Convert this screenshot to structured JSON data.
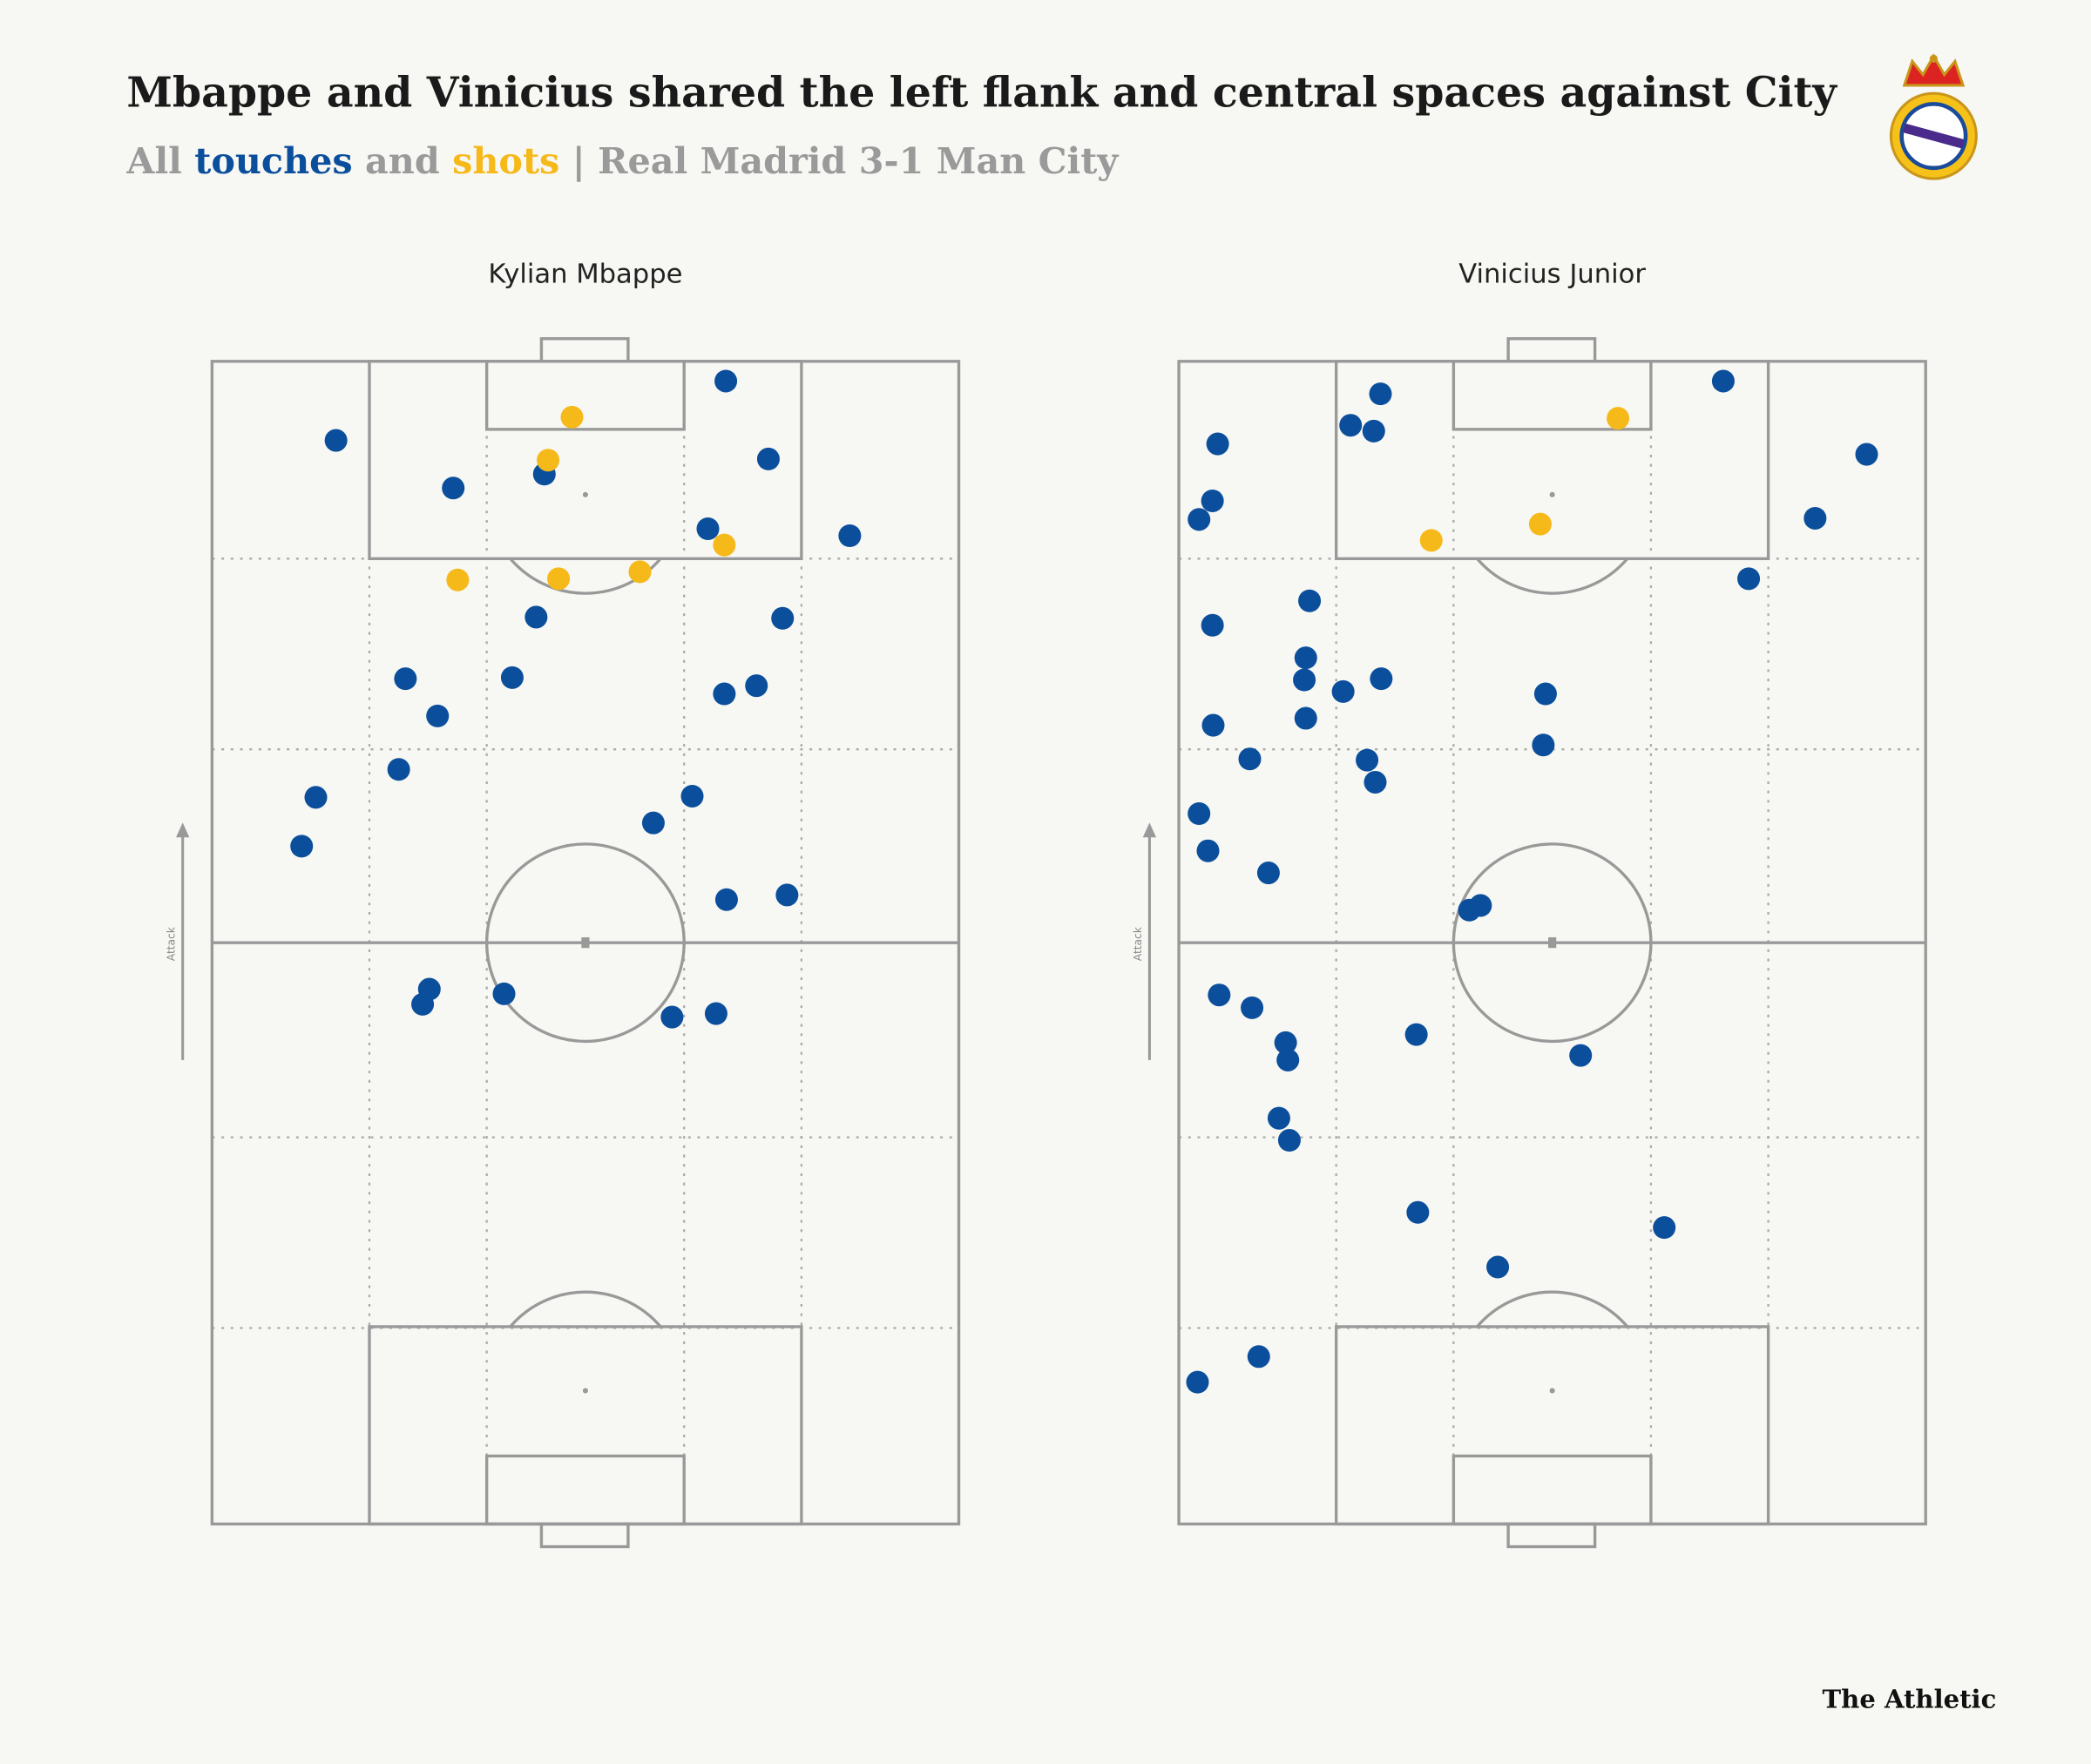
{
  "header": {
    "title": "Mbappe and Vinicius shared the left flank and central spaces against City",
    "subtitle_parts": [
      "All ",
      "touches",
      " and ",
      "shots",
      " | Real Madrid 3-1 Man City"
    ]
  },
  "logo": {
    "name": "Real Madrid crest"
  },
  "attack_label": "Attack",
  "brand": "The Athletic",
  "colors": {
    "touch": "#0b4f9c",
    "shot": "#f6b91a",
    "pitch_line": "#999999",
    "background": "#f7f7f3"
  },
  "chart_data": [
    {
      "type": "scatter",
      "title": "Kylian Mbappe",
      "xlim": [
        0,
        100
      ],
      "ylim": [
        0,
        100
      ],
      "series": [
        {
          "name": "touches",
          "points": [
            [
              68.8,
              98.3
            ],
            [
              16.6,
              93.2
            ],
            [
              74.5,
              91.6
            ],
            [
              32.3,
              89.1
            ],
            [
              44.5,
              90.3
            ],
            [
              66.4,
              85.6
            ],
            [
              85.4,
              85.0
            ],
            [
              43.4,
              78.0
            ],
            [
              76.4,
              77.9
            ],
            [
              25.9,
              72.7
            ],
            [
              40.2,
              72.8
            ],
            [
              68.6,
              71.4
            ],
            [
              72.9,
              72.1
            ],
            [
              30.2,
              69.5
            ],
            [
              25.0,
              64.9
            ],
            [
              13.9,
              62.5
            ],
            [
              64.3,
              62.6
            ],
            [
              59.1,
              60.3
            ],
            [
              12.0,
              58.3
            ],
            [
              68.9,
              53.7
            ],
            [
              77.0,
              54.1
            ],
            [
              29.1,
              46.0
            ],
            [
              28.2,
              44.7
            ],
            [
              39.1,
              45.6
            ],
            [
              61.6,
              43.6
            ],
            [
              67.5,
              43.9
            ]
          ]
        },
        {
          "name": "shots",
          "points": [
            [
              48.2,
              95.2
            ],
            [
              45.0,
              91.5
            ],
            [
              68.6,
              84.2
            ],
            [
              32.9,
              81.2
            ],
            [
              46.4,
              81.3
            ],
            [
              57.3,
              81.9
            ]
          ]
        }
      ]
    },
    {
      "type": "scatter",
      "title": "Vinicius Junior",
      "xlim": [
        0,
        100
      ],
      "ylim": [
        0,
        100
      ],
      "series": [
        {
          "name": "touches",
          "points": [
            [
              27.0,
              97.2
            ],
            [
              23.0,
              94.5
            ],
            [
              26.1,
              94.0
            ],
            [
              5.2,
              92.9
            ],
            [
              4.5,
              88.0
            ],
            [
              2.7,
              86.4
            ],
            [
              72.9,
              98.3
            ],
            [
              92.1,
              92.0
            ],
            [
              85.2,
              86.5
            ],
            [
              76.3,
              81.3
            ],
            [
              17.5,
              79.4
            ],
            [
              4.5,
              77.3
            ],
            [
              17.0,
              74.5
            ],
            [
              16.8,
              72.6
            ],
            [
              22.0,
              71.6
            ],
            [
              27.1,
              72.7
            ],
            [
              49.1,
              71.4
            ],
            [
              17.0,
              69.3
            ],
            [
              4.6,
              68.7
            ],
            [
              48.8,
              67.0
            ],
            [
              9.5,
              65.8
            ],
            [
              25.2,
              65.7
            ],
            [
              26.3,
              63.8
            ],
            [
              2.7,
              61.1
            ],
            [
              3.9,
              57.9
            ],
            [
              12.0,
              56.0
            ],
            [
              38.9,
              52.8
            ],
            [
              40.4,
              53.2
            ],
            [
              5.4,
              45.5
            ],
            [
              9.8,
              44.4
            ],
            [
              14.3,
              41.4
            ],
            [
              14.6,
              39.9
            ],
            [
              31.8,
              42.1
            ],
            [
              53.8,
              40.3
            ],
            [
              13.4,
              34.9
            ],
            [
              14.8,
              33.0
            ],
            [
              32.0,
              26.8
            ],
            [
              65.0,
              25.5
            ],
            [
              42.7,
              22.1
            ],
            [
              10.7,
              14.4
            ],
            [
              2.5,
              12.2
            ]
          ]
        },
        {
          "name": "shots",
          "points": [
            [
              58.8,
              95.1
            ],
            [
              33.8,
              84.6
            ],
            [
              48.4,
              86.0
            ]
          ]
        }
      ]
    }
  ]
}
